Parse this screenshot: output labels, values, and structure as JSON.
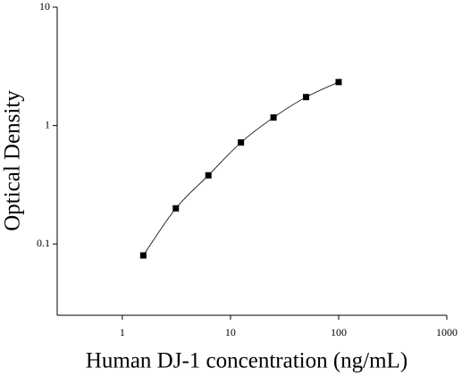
{
  "chart_data": {
    "type": "scatter",
    "x_label": "Human DJ-1 concentration (ng/mL)",
    "y_label": "Optical Density",
    "x": [
      1.5625,
      3.125,
      6.25,
      12.5,
      25,
      50,
      100
    ],
    "values": [
      0.08,
      0.2,
      0.38,
      0.72,
      1.17,
      1.74,
      2.33
    ],
    "color": "#000000",
    "fit_line": true,
    "xscale": "log",
    "yscale": "log",
    "xlim": [
      0.25,
      1000
    ],
    "ylim": [
      0.025,
      10
    ],
    "xticks": [
      1,
      10,
      100,
      1000
    ],
    "yticks": [
      0.1,
      1,
      10
    ]
  }
}
